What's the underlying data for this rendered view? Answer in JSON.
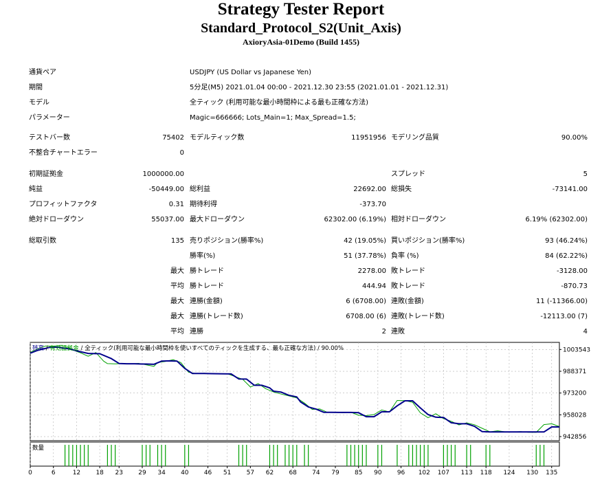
{
  "header": {
    "title": "Strategy Tester Report",
    "subtitle": "Standard_Protocol_S2(Unit_Axis)",
    "server": "AxioryAsia-01Demo (Build 1455)"
  },
  "info": {
    "symbol_label": "通貨ペア",
    "symbol_value": "USDJPY (US Dollar vs Japanese Yen)",
    "period_label": "期間",
    "period_value": "5分足(M5) 2021.01.04 00:00 - 2021.12.30 23:55 (2021.01.01 - 2021.12.31)",
    "model_label": "モデル",
    "model_value": "全ティック (利用可能な最小時間枠による最も正確な方法)",
    "params_label": "パラメーター",
    "params_value": "Magic=666666; Lots_Main=1; Max_Spread=1.5;"
  },
  "stats": {
    "bars_label": "テストバー数",
    "bars_value": "75402",
    "ticks_label": "モデルティック数",
    "ticks_value": "11951956",
    "quality_label": "モデリング品質",
    "quality_value": "90.00%",
    "mismatch_label": "不整合チャートエラー",
    "mismatch_value": "0",
    "deposit_label": "初期証拠金",
    "deposit_value": "1000000.00",
    "spread_label": "スプレッド",
    "spread_value": "5",
    "net_label": "純益",
    "net_value": "-50449.00",
    "gross_profit_label": "総利益",
    "gross_profit_value": "22692.00",
    "gross_loss_label": "総損失",
    "gross_loss_value": "-73141.00",
    "pf_label": "プロフィットファクタ",
    "pf_value": "0.31",
    "payoff_label": "期待利得",
    "payoff_value": "-373.70",
    "abs_dd_label": "絶対ドローダウン",
    "abs_dd_value": "55037.00",
    "max_dd_label": "最大ドローダウン",
    "max_dd_value": "62302.00 (6.19%)",
    "rel_dd_label": "相対ドローダウン",
    "rel_dd_value": "6.19% (62302.00)",
    "trades_label": "総取引数",
    "trades_value": "135",
    "short_label": "売りポジション(勝率%)",
    "short_value": "42 (19.05%)",
    "long_label": "買いポジション(勝率%)",
    "long_value": "93 (46.24%)",
    "win_label": "勝率(%)",
    "win_value": "51 (37.78%)",
    "loss_label": "負率 (%)",
    "loss_value": "84 (62.22%)",
    "largest_label": "最大",
    "largest_win_label": "勝トレード",
    "largest_win_value": "2278.00",
    "largest_loss_label": "敗トレード",
    "largest_loss_value": "-3128.00",
    "average_label": "平均",
    "avg_win_label": "勝トレード",
    "avg_win_value": "444.94",
    "avg_loss_label": "敗トレード",
    "avg_loss_value": "-870.73",
    "max_label2": "最大",
    "cons_wins_money_label": "連勝(金額)",
    "cons_wins_money_value": "6 (6708.00)",
    "cons_loss_money_label": "連敗(金額)",
    "cons_loss_money_value": "11 (-11366.00)",
    "max_label3": "最大",
    "cons_wins_count_label": "連勝(トレード数)",
    "cons_wins_count_value": "6708.00 (6)",
    "cons_loss_count_label": "連敗(トレード数)",
    "cons_loss_count_value": "-12113.00 (7)",
    "avg_label2": "平均",
    "avg_cons_wins_label": "連勝",
    "avg_cons_wins_value": "2",
    "avg_cons_loss_label": "連敗",
    "avg_cons_loss_value": "4"
  },
  "chart_legend": {
    "balance": "残高",
    "sep1": " / ",
    "equity": "有効証拠金",
    "sep2": " / ",
    "desc": "全ティック(利用可能な最小時間枠を使いすべてのティックを生成する、最も正確な方法)",
    "sep3": " / ",
    "quality": "90.00%"
  },
  "volume_label": "数量",
  "colors": {
    "balance": "#00008b",
    "equity": "#00a000",
    "volume": "#00a000",
    "grid": "#b0b0b0"
  },
  "chart_data": {
    "type": "line",
    "x_ticks": [
      0,
      6,
      12,
      18,
      23,
      29,
      34,
      40,
      46,
      51,
      57,
      62,
      68,
      74,
      79,
      85,
      90,
      96,
      102,
      107,
      113,
      118,
      124,
      130,
      135
    ],
    "y_ticks": [
      942856,
      958028,
      973200,
      988371,
      1003543
    ],
    "ylim": [
      940000,
      1008500
    ],
    "xlim": [
      0,
      137
    ],
    "series": [
      {
        "key": "balance",
        "x": [
          0,
          2,
          5,
          7,
          10,
          13,
          15,
          18,
          21,
          23,
          25,
          27,
          29,
          30,
          32,
          34,
          36,
          38,
          40,
          42,
          45,
          47,
          50,
          52,
          54,
          56,
          58,
          60,
          62,
          63,
          65,
          67,
          69,
          70,
          72,
          74,
          76,
          78,
          80,
          83,
          85,
          87,
          89,
          91,
          93,
          95,
          97,
          99,
          101,
          103,
          105,
          107,
          109,
          111,
          113,
          115,
          117,
          119,
          121,
          123,
          125,
          127,
          129,
          131,
          133,
          135,
          137
        ],
        "y": [
          1001000,
          1003000,
          1005000,
          1005200,
          1004000,
          1002000,
          1000800,
          1000600,
          997200,
          993800,
          993600,
          993600,
          993400,
          993400,
          993200,
          995400,
          995600,
          995400,
          990400,
          986800,
          986800,
          986700,
          986600,
          986500,
          983000,
          982900,
          978600,
          978600,
          976800,
          974500,
          973800,
          971600,
          970500,
          967000,
          963500,
          962000,
          959800,
          959800,
          959700,
          959700,
          959500,
          956700,
          956700,
          960100,
          960100,
          964300,
          967800,
          967800,
          962800,
          958200,
          956400,
          956200,
          952500,
          951800,
          951800,
          950000,
          946300,
          946100,
          946100,
          946100,
          946100,
          946100,
          946100,
          946100,
          946100,
          949600,
          949600
        ]
      },
      {
        "key": "equity",
        "x": [
          0,
          2,
          4,
          6,
          8,
          10,
          12,
          13,
          15,
          17,
          19,
          20,
          22,
          24,
          26,
          28,
          30,
          32,
          33,
          35,
          37,
          39,
          41,
          43,
          45,
          47,
          49,
          51,
          53,
          55,
          57,
          59,
          61,
          63,
          65,
          67,
          69,
          71,
          73,
          75,
          77,
          79,
          81,
          83,
          85,
          87,
          89,
          91,
          93,
          95,
          97,
          99,
          101,
          103,
          105,
          107,
          109,
          111,
          113,
          115,
          117,
          119,
          121,
          123,
          125,
          127,
          129,
          131,
          133,
          135,
          137
        ],
        "y": [
          1001500,
          1004000,
          1006000,
          1005800,
          1006500,
          1004800,
          1002200,
          1001200,
          998800,
          1001400,
          995400,
          993700,
          993500,
          993800,
          993400,
          993900,
          992900,
          991800,
          994500,
          995200,
          996500,
          994400,
          987700,
          986700,
          987000,
          986800,
          986600,
          986700,
          984700,
          982800,
          977400,
          979800,
          976200,
          973900,
          972500,
          971200,
          969800,
          966200,
          961800,
          962100,
          959700,
          959900,
          959500,
          959900,
          957700,
          957500,
          958200,
          961400,
          960000,
          968000,
          967900,
          966800,
          959400,
          956000,
          958800,
          955400,
          953500,
          951000,
          952400,
          951100,
          948600,
          946200,
          946900,
          946200,
          946100,
          946300,
          945900,
          945800,
          951200,
          951800,
          949800
        ]
      }
    ],
    "volume_x": [
      9,
      10,
      11,
      12,
      13,
      14,
      15,
      20,
      21,
      22,
      29,
      30,
      31,
      33,
      34,
      35,
      40,
      41,
      54,
      55,
      56,
      62,
      63,
      64,
      66,
      67,
      68,
      69,
      71,
      72,
      82,
      83,
      84,
      85,
      86,
      87,
      90,
      91,
      95,
      98,
      99,
      100,
      101,
      102,
      103,
      107,
      108,
      109,
      110,
      113,
      114,
      118,
      119,
      131,
      132,
      133
    ]
  }
}
